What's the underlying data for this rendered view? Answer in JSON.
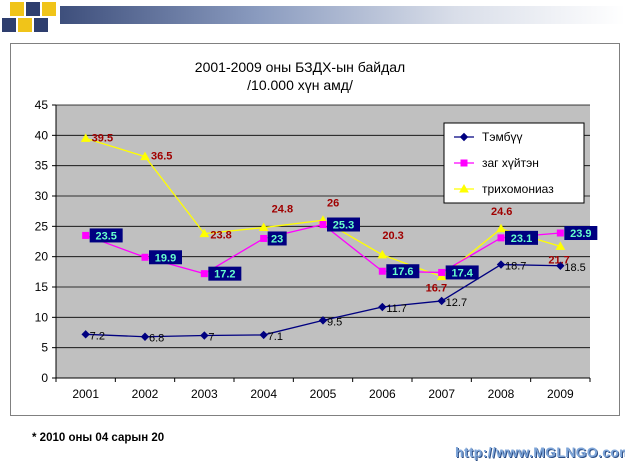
{
  "footnote": "* 2010 оны 04 сарын 20",
  "watermark": "http://www.MGLNGO.com",
  "chart_data": {
    "type": "line",
    "title_lines": [
      "2001-2009 оны  БЗДХ-ын байдал",
      "/10.000 хүн амд/"
    ],
    "categories": [
      "2001",
      "2002",
      "2003",
      "2004",
      "2005",
      "2006",
      "2007",
      "2008",
      "2009"
    ],
    "ylim": [
      0,
      45
    ],
    "yticks": [
      0,
      5,
      10,
      15,
      20,
      25,
      30,
      35,
      40,
      45
    ],
    "grid": true,
    "plot_background": "#c0c0c0",
    "legend_position": "top-right",
    "series": [
      {
        "name": "Тэмбүү",
        "color": "#000080",
        "marker": "diamond",
        "values": [
          7.2,
          6.8,
          7,
          7.1,
          9.5,
          11.7,
          12.7,
          18.7,
          18.5
        ],
        "labels": [
          "7.2",
          "6.8",
          "7",
          "7.1",
          "9.5",
          "11.7",
          "12.7",
          "18.7",
          "18.5"
        ]
      },
      {
        "name": "заг хүйтэн",
        "color": "#ff00ff",
        "marker": "square",
        "values": [
          23.5,
          19.9,
          17.2,
          23,
          25.3,
          17.6,
          17.4,
          23.1,
          23.9
        ],
        "labels": [
          "23.5",
          "19.9",
          "17.2",
          "23",
          "25.3",
          "17.6",
          "17.4",
          "23.1",
          "23.9"
        ]
      },
      {
        "name": "трихомониаз",
        "color": "#ffff00",
        "marker": "triangle",
        "values": [
          39.5,
          36.5,
          23.8,
          24.8,
          26,
          20.3,
          16.7,
          24.6,
          21.7
        ],
        "labels": [
          "39.5",
          "36.5",
          "23.8",
          "24.8",
          "26",
          "20.3",
          "16.7",
          "24.6",
          "21.7"
        ]
      }
    ]
  }
}
